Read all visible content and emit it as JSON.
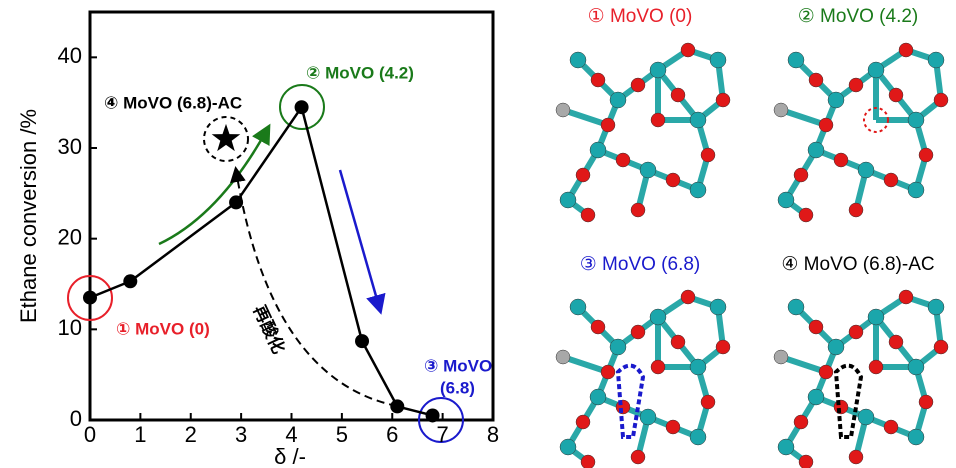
{
  "chart_data": {
    "type": "line",
    "x_label": "δ /-",
    "y_label": "Ethane conversion /%",
    "x": [
      0,
      0.8,
      2.9,
      4.2,
      5.4,
      6.1,
      6.8
    ],
    "series": [
      {
        "color": "#000000",
        "values": [
          13.5,
          15.3,
          24,
          34.5,
          8.7,
          1.5,
          0.5
        ]
      }
    ],
    "star": {
      "x": 2.7,
      "y": 31,
      "color": "#000000"
    },
    "xlim": [
      0,
      8
    ],
    "xticks": [
      0,
      1,
      2,
      3,
      4,
      5,
      6,
      7,
      8
    ],
    "ylim": [
      0,
      45
    ],
    "yticks": [
      0,
      10,
      20,
      30,
      40
    ],
    "annotations": [
      {
        "lines": [
          "① MoVO (0)"
        ],
        "color": "#e8202a"
      },
      {
        "lines": [
          "② MoVO (4.2)"
        ],
        "color": "#1a7a1a"
      },
      {
        "lines": [
          "③ MoVO",
          "(6.8)"
        ],
        "color": "#1a1acc"
      },
      {
        "lines": [
          "④ MoVO (6.8)-AC"
        ],
        "color": "#000000"
      },
      {
        "lines": [
          "再酸化"
        ],
        "color": "#000000"
      }
    ]
  },
  "panels": [
    {
      "title": "① MoVO (0)",
      "color": "#e8202a"
    },
    {
      "title": "② MoVO (4.2)",
      "color": "#1a7a1a"
    },
    {
      "title": "③ MoVO (6.8)",
      "color": "#1a1acc"
    },
    {
      "title": "④ MoVO (6.8)-AC",
      "color": "#000000"
    }
  ]
}
